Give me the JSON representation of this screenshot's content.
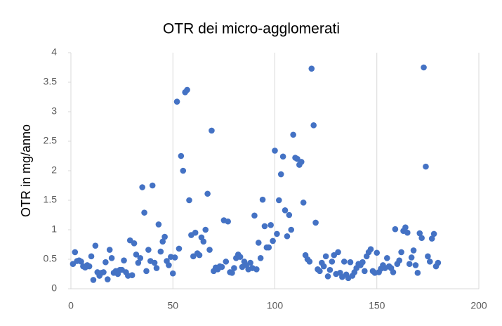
{
  "chart_data": {
    "type": "scatter",
    "title": "OTR dei micro-agglomerati",
    "ylabel": "OTR in mg/anno",
    "color": "#4472c4",
    "xgrid": true,
    "ygrid": false,
    "xlim": [
      0,
      200
    ],
    "xticks": [
      0,
      50,
      100,
      150,
      200
    ],
    "ylim": [
      0,
      4
    ],
    "yticks": [
      0,
      0.5,
      1,
      1.5,
      2,
      2.5,
      3,
      3.5,
      4
    ],
    "x": [
      1,
      2,
      3,
      4,
      5,
      6,
      7,
      8,
      9,
      10,
      11,
      12,
      13,
      14,
      15,
      16,
      17,
      18,
      19,
      20,
      21,
      22,
      23,
      24,
      25,
      26,
      27,
      28,
      29,
      30,
      31,
      32,
      33,
      34,
      35,
      36,
      37,
      38,
      39,
      40,
      41,
      42,
      43,
      44,
      45,
      46,
      47,
      48,
      49,
      50,
      51,
      52,
      53,
      54,
      55,
      56,
      57,
      58,
      59,
      60,
      61,
      62,
      63,
      64,
      65,
      66,
      67,
      68,
      69,
      70,
      71,
      72,
      73,
      74,
      75,
      76,
      77,
      78,
      79,
      80,
      81,
      82,
      83,
      84,
      85,
      86,
      87,
      88,
      89,
      90,
      91,
      92,
      93,
      94,
      95,
      96,
      97,
      98,
      99,
      100,
      101,
      102,
      103,
      104,
      105,
      106,
      107,
      108,
      109,
      110,
      111,
      112,
      113,
      114,
      115,
      116,
      117,
      118,
      119,
      120,
      121,
      122,
      123,
      124,
      125,
      126,
      127,
      128,
      129,
      130,
      131,
      132,
      133,
      134,
      135,
      136,
      137,
      138,
      139,
      140,
      141,
      142,
      143,
      144,
      145,
      146,
      147,
      148,
      149,
      150,
      151,
      152,
      153,
      154,
      155,
      156,
      157,
      158,
      159,
      160,
      161,
      162,
      163,
      164,
      165,
      166,
      167,
      168,
      169,
      170,
      171,
      172,
      173,
      174,
      175,
      176,
      177,
      178,
      179,
      180
    ],
    "values": [
      0.42,
      0.62,
      0.47,
      0.48,
      0.46,
      0.38,
      0.36,
      0.4,
      0.38,
      0.55,
      0.15,
      0.73,
      0.28,
      0.22,
      0.27,
      0.28,
      0.45,
      0.16,
      0.66,
      0.52,
      0.27,
      0.3,
      0.25,
      0.32,
      0.32,
      0.48,
      0.28,
      0.22,
      0.82,
      0.23,
      0.77,
      0.58,
      0.44,
      0.52,
      1.72,
      1.29,
      0.3,
      0.66,
      0.47,
      1.75,
      0.44,
      0.35,
      1.09,
      0.63,
      0.8,
      0.88,
      0.47,
      0.4,
      0.54,
      0.26,
      0.53,
      3.17,
      0.68,
      2.25,
      2.0,
      3.33,
      3.37,
      1.5,
      0.91,
      0.55,
      0.95,
      0.6,
      0.57,
      0.87,
      0.8,
      1.0,
      1.61,
      0.66,
      2.68,
      0.3,
      0.36,
      0.33,
      0.38,
      0.37,
      1.16,
      0.46,
      1.14,
      0.28,
      0.27,
      0.35,
      0.52,
      0.58,
      0.54,
      0.37,
      0.46,
      0.4,
      0.33,
      0.44,
      0.35,
      1.24,
      0.33,
      0.78,
      0.52,
      1.51,
      1.06,
      0.7,
      0.7,
      1.08,
      0.81,
      2.34,
      0.93,
      1.5,
      1.94,
      2.24,
      1.33,
      0.89,
      1.25,
      1.0,
      2.61,
      2.22,
      2.2,
      2.1,
      2.15,
      1.46,
      0.57,
      0.5,
      0.46,
      3.73,
      2.77,
      1.12,
      0.33,
      0.3,
      0.44,
      0.38,
      0.55,
      0.21,
      0.32,
      0.46,
      0.57,
      0.25,
      0.62,
      0.27,
      0.2,
      0.46,
      0.24,
      0.18,
      0.45,
      0.22,
      0.28,
      0.35,
      0.42,
      0.4,
      0.45,
      0.3,
      0.55,
      0.62,
      0.67,
      0.3,
      0.27,
      0.61,
      0.28,
      0.34,
      0.4,
      0.35,
      0.52,
      0.38,
      0.35,
      0.28,
      1.01,
      0.42,
      0.48,
      0.62,
      0.98,
      1.04,
      0.95,
      0.42,
      0.53,
      0.65,
      0.4,
      0.27,
      0.94,
      0.86,
      3.75,
      2.07,
      0.55,
      0.46,
      0.85,
      0.93,
      0.38,
      0.44
    ]
  }
}
